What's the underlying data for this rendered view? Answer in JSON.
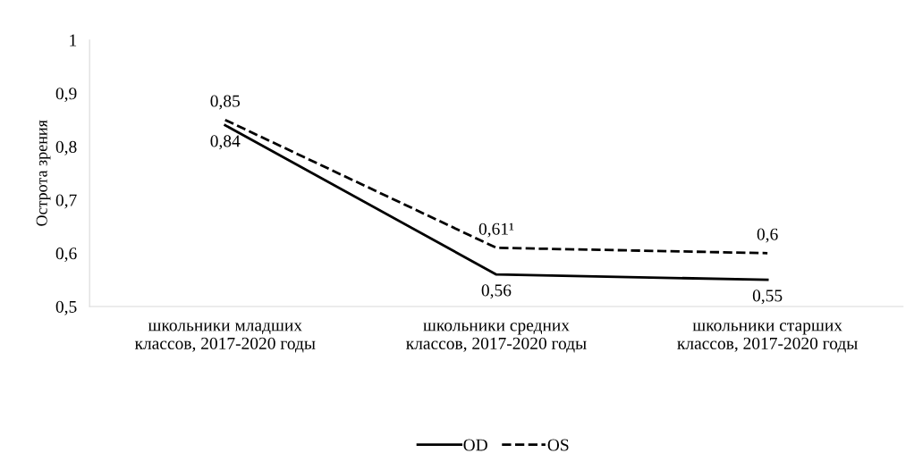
{
  "chart_data": {
    "type": "line",
    "ylabel": "Острота зрения",
    "categories": [
      "школьники младших\nклассов, 2017-2020 годы",
      "школьники средних\nклассов, 2017-2020 годы",
      "школьники старших\nклассов, 2017-2020 годы"
    ],
    "series": [
      {
        "name": "OD",
        "color": "#000000",
        "values": [
          0.84,
          0.56,
          0.55
        ],
        "line_style": "solid",
        "value_labels": [
          "0,84",
          "0,56",
          "0,55"
        ]
      },
      {
        "name": "OS",
        "color": "#000000",
        "values": [
          0.85,
          0.61,
          0.6
        ],
        "line_style": "dashed",
        "value_labels": [
          "0,85",
          "0,61¹",
          "0,6"
        ]
      }
    ],
    "ylim": [
      0.5,
      1
    ],
    "yticks": [
      {
        "value": 0.5,
        "label": "0,5"
      },
      {
        "value": 0.6,
        "label": "0,6"
      },
      {
        "value": 0.7,
        "label": "0,7"
      },
      {
        "value": 0.8,
        "label": "0,8"
      },
      {
        "value": 0.9,
        "label": "0,9"
      },
      {
        "value": 1,
        "label": "1"
      }
    ],
    "grid": false,
    "legend": "bottom",
    "marker": "none"
  }
}
